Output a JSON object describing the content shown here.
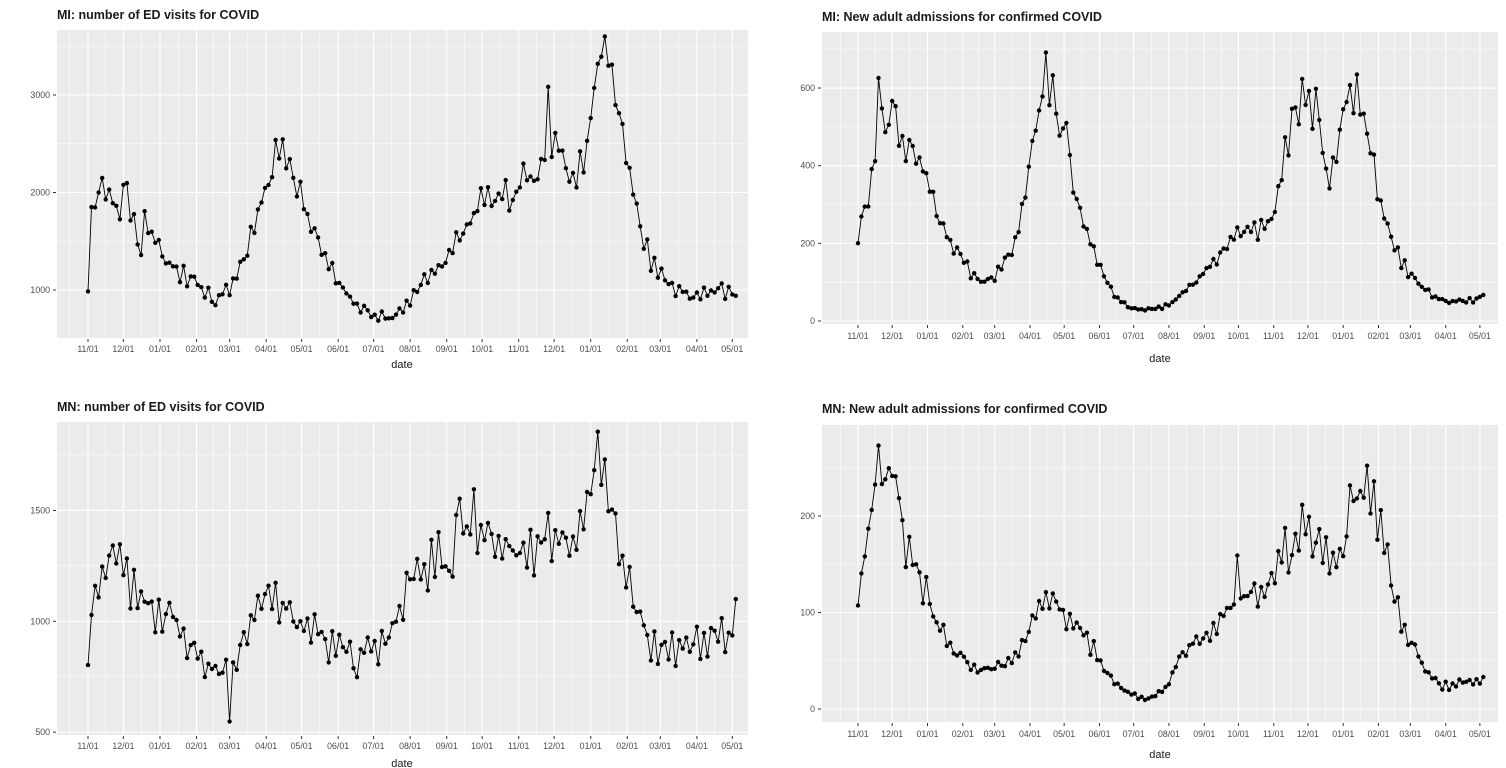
{
  "page": {
    "background": "#ffffff"
  },
  "theme": {
    "panel_bg": "#ebebeb",
    "grid_major_color": "#ffffff",
    "grid_minor_color": "#ffffff",
    "point_color": "#000000",
    "line_color": "#000000",
    "tick_mark_color": "#333333",
    "tick_label_color": "#4d4d4d",
    "title_color": "#1a1a1a"
  },
  "x_axis": {
    "label": "date",
    "tick_labels": [
      "11/01",
      "12/01",
      "01/01",
      "02/01",
      "03/01",
      "04/01",
      "05/01",
      "06/01",
      "07/01",
      "08/01",
      "09/01",
      "10/01",
      "11/01",
      "12/01",
      "01/01",
      "02/01",
      "03/01",
      "04/01",
      "05/01"
    ],
    "tick_day_offsets": [
      0,
      30,
      61,
      92,
      120,
      151,
      181,
      212,
      242,
      273,
      304,
      334,
      365,
      395,
      426,
      457,
      485,
      516,
      546
    ]
  },
  "chart_data": [
    {
      "type": "line",
      "title": "MI: number of ED visits for COVID",
      "xlabel": "date",
      "ylabel": "",
      "y_ticks": [
        1000,
        2000,
        3000
      ],
      "y_minor": [
        1500,
        2500,
        3500
      ],
      "ylim": [
        508,
        3667
      ],
      "x_tick_labels": [
        "11/01",
        "12/01",
        "01/01",
        "02/01",
        "03/01",
        "04/01",
        "05/01",
        "06/01",
        "07/01",
        "08/01",
        "09/01",
        "10/01",
        "11/01",
        "12/01",
        "01/01",
        "02/01",
        "03/01",
        "04/01",
        "05/01"
      ],
      "sampling": "points every ~3 days, day 0 = first 11/01 tick; trend pairs are [day,value] estimates read from plot",
      "trend": [
        0,
        1050,
        3,
        1750,
        7,
        1850,
        12,
        2150,
        16,
        1900,
        21,
        2050,
        24,
        1900,
        27,
        1650,
        31,
        2170,
        35,
        1850,
        40,
        1650,
        45,
        1300,
        48,
        1760,
        53,
        1550,
        58,
        1500,
        63,
        1400,
        67,
        1260,
        73,
        1230,
        79,
        1160,
        85,
        1110,
        92,
        1150,
        98,
        960,
        105,
        950,
        108,
        820,
        114,
        1000,
        120,
        1010,
        128,
        1210,
        136,
        1460,
        144,
        1760,
        150,
        2010,
        156,
        2260,
        162,
        2450,
        168,
        2410,
        174,
        2210,
        181,
        1960,
        187,
        1710,
        194,
        1510,
        202,
        1310,
        210,
        1110,
        218,
        960,
        226,
        860,
        234,
        790,
        242,
        750,
        250,
        720,
        258,
        710,
        266,
        810,
        274,
        910,
        282,
        1060,
        290,
        1160,
        298,
        1260,
        306,
        1360,
        314,
        1510,
        322,
        1660,
        330,
        1860,
        338,
        1960,
        346,
        1910,
        354,
        1960,
        362,
        1910,
        368,
        2110,
        374,
        2160,
        380,
        2110,
        386,
        2310,
        390,
        2860,
        393,
        2410,
        399,
        2510,
        405,
        2310,
        411,
        2210,
        417,
        2260,
        423,
        2510,
        429,
        3010,
        435,
        3550,
        441,
        3460,
        447,
        3010,
        453,
        2660,
        459,
        2210,
        465,
        1810,
        471,
        1510,
        477,
        1310,
        483,
        1210,
        489,
        1110,
        497,
        1010,
        505,
        1000,
        513,
        920,
        521,
        950,
        529,
        1000,
        537,
        1000,
        545,
        1000,
        549,
        960
      ],
      "noise": {
        "weekly": 0.05,
        "jitter": 0.045,
        "seed": 7,
        "clamp": [
          560,
          3600
        ]
      }
    },
    {
      "type": "line",
      "title": "MI: New adult admissions for confirmed COVID",
      "xlabel": "date",
      "ylabel": "",
      "y_ticks": [
        0,
        200,
        400,
        600
      ],
      "y_minor": [
        100,
        300,
        500,
        700
      ],
      "ylim": [
        -8,
        744
      ],
      "x_tick_labels": [
        "11/01",
        "12/01",
        "01/01",
        "02/01",
        "03/01",
        "04/01",
        "05/01",
        "06/01",
        "07/01",
        "08/01",
        "09/01",
        "10/01",
        "11/01",
        "12/01",
        "01/01",
        "02/01",
        "03/01",
        "04/01",
        "05/01"
      ],
      "sampling": "points every ~3 days, day 0 = first 11/01 tick; trend pairs are [day,value] estimates read from plot",
      "trend": [
        0,
        220,
        3,
        270,
        6,
        300,
        9,
        325,
        12,
        360,
        15,
        420,
        18,
        620,
        22,
        540,
        25,
        480,
        29,
        570,
        33,
        540,
        37,
        480,
        41,
        430,
        45,
        445,
        49,
        460,
        53,
        380,
        57,
        420,
        61,
        360,
        65,
        320,
        70,
        280,
        75,
        250,
        80,
        215,
        85,
        180,
        90,
        165,
        95,
        140,
        101,
        120,
        107,
        105,
        113,
        105,
        120,
        115,
        126,
        135,
        132,
        165,
        138,
        205,
        144,
        280,
        150,
        400,
        156,
        510,
        161,
        570,
        165,
        680,
        168,
        630,
        171,
        600,
        175,
        520,
        179,
        455,
        182,
        540,
        186,
        420,
        190,
        350,
        195,
        290,
        201,
        230,
        207,
        180,
        213,
        140,
        219,
        100,
        225,
        70,
        231,
        50,
        237,
        38,
        243,
        32,
        249,
        29,
        255,
        30,
        261,
        31,
        267,
        36,
        273,
        43,
        279,
        56,
        285,
        70,
        291,
        86,
        297,
        100,
        303,
        126,
        309,
        146,
        315,
        160,
        321,
        182,
        327,
        202,
        333,
        222,
        339,
        236,
        345,
        230,
        351,
        236,
        357,
        256,
        362,
        272,
        366,
        310,
        372,
        385,
        378,
        455,
        381,
        540,
        385,
        510,
        390,
        560,
        394,
        580,
        398,
        545,
        402,
        570,
        406,
        500,
        411,
        390,
        415,
        372,
        419,
        415,
        423,
        485,
        427,
        550,
        431,
        600,
        435,
        575,
        438,
        595,
        442,
        535,
        446,
        480,
        450,
        430,
        454,
        380,
        458,
        320,
        462,
        270,
        466,
        230,
        470,
        200,
        474,
        175,
        478,
        150,
        482,
        130,
        486,
        115,
        490,
        100,
        495,
        88,
        500,
        75,
        505,
        65,
        510,
        58,
        515,
        52,
        520,
        49,
        525,
        52,
        530,
        50,
        535,
        53,
        540,
        55,
        545,
        60,
        549,
        65
      ],
      "noise": {
        "weekly": 0.07,
        "jitter": 0.07,
        "seed": 11,
        "clamp": [
          22,
          700
        ]
      }
    },
    {
      "type": "line",
      "title": "MN: number of ED visits for COVID",
      "xlabel": "date",
      "ylabel": "",
      "y_ticks": [
        500,
        1000,
        1500
      ],
      "y_minor": [
        750,
        1250,
        1750
      ],
      "ylim": [
        487,
        1899
      ],
      "x_tick_labels": [
        "11/01",
        "12/01",
        "01/01",
        "02/01",
        "03/01",
        "04/01",
        "05/01",
        "06/01",
        "07/01",
        "08/01",
        "09/01",
        "10/01",
        "11/01",
        "12/01",
        "01/01",
        "02/01",
        "03/01",
        "04/01",
        "05/01"
      ],
      "sampling": "points every ~3 days, day 0 = first 11/01 tick; trend pairs are [day,value] estimates read from plot",
      "trend": [
        0,
        860,
        3,
        1020,
        6,
        1150,
        10,
        1130,
        14,
        1210,
        18,
        1260,
        21,
        1370,
        24,
        1270,
        28,
        1300,
        32,
        1250,
        36,
        1170,
        40,
        1130,
        45,
        1140,
        50,
        1100,
        55,
        1060,
        60,
        1050,
        65,
        960,
        70,
        1060,
        75,
        970,
        80,
        950,
        85,
        900,
        90,
        870,
        95,
        830,
        100,
        800,
        105,
        790,
        110,
        800,
        117,
        760,
        120,
        560,
        123,
        770,
        128,
        850,
        133,
        920,
        138,
        1010,
        143,
        1100,
        148,
        1080,
        153,
        1110,
        158,
        1150,
        163,
        1060,
        168,
        1090,
        173,
        1050,
        178,
        1010,
        183,
        990,
        188,
        1000,
        193,
        960,
        198,
        930,
        203,
        910,
        208,
        900,
        213,
        900,
        218,
        880,
        223,
        860,
        228,
        700,
        231,
        870,
        236,
        880,
        241,
        900,
        246,
        870,
        251,
        880,
        256,
        940,
        261,
        1020,
        266,
        1090,
        271,
        1170,
        276,
        1220,
        281,
        1230,
        286,
        1150,
        291,
        1280,
        296,
        1330,
        301,
        1280,
        306,
        1230,
        311,
        1300,
        315,
        1600,
        318,
        1380,
        322,
        1420,
        327,
        1570,
        330,
        1400,
        335,
        1440,
        340,
        1350,
        345,
        1310,
        350,
        1310,
        355,
        1380,
        360,
        1300,
        365,
        1300,
        370,
        1310,
        375,
        1330,
        380,
        1310,
        385,
        1320,
        390,
        1380,
        395,
        1310,
        400,
        1360,
        405,
        1390,
        410,
        1310,
        415,
        1350,
        420,
        1440,
        425,
        1610,
        432,
        1840,
        435,
        1740,
        439,
        1620,
        443,
        1560,
        447,
        1460,
        451,
        1320,
        455,
        1210,
        459,
        1150,
        463,
        1080,
        467,
        1010,
        471,
        970,
        475,
        930,
        479,
        900,
        483,
        880,
        488,
        890,
        493,
        860,
        498,
        880,
        503,
        880,
        508,
        890,
        513,
        910,
        518,
        900,
        523,
        920,
        528,
        930,
        533,
        930,
        538,
        950,
        543,
        940,
        549,
        1030
      ],
      "noise": {
        "weekly": 0.055,
        "jitter": 0.05,
        "seed": 23,
        "clamp": [
          548,
          1855
        ]
      }
    },
    {
      "type": "line",
      "title": "MN: New adult admissions for confirmed COVID",
      "xlabel": "date",
      "ylabel": "",
      "y_ticks": [
        0,
        100,
        200
      ],
      "y_minor": [
        50,
        150,
        250
      ],
      "ylim": [
        -14,
        294
      ],
      "x_tick_labels": [
        "11/01",
        "12/01",
        "01/01",
        "02/01",
        "03/01",
        "04/01",
        "05/01",
        "06/01",
        "07/01",
        "08/01",
        "09/01",
        "10/01",
        "11/01",
        "12/01",
        "01/01",
        "02/01",
        "03/01",
        "04/01",
        "05/01"
      ],
      "sampling": "points every ~3 days, day 0 = first 11/01 tick; trend pairs are [day,value] estimates read from plot",
      "trend": [
        0,
        120,
        2,
        135,
        5,
        170,
        8,
        175,
        11,
        200,
        14,
        230,
        17,
        255,
        21,
        272,
        24,
        240,
        27,
        255,
        30,
        235,
        33,
        210,
        36,
        220,
        39,
        185,
        42,
        170,
        45,
        160,
        48,
        150,
        51,
        148,
        54,
        130,
        57,
        128,
        60,
        118,
        63,
        106,
        67,
        96,
        71,
        84,
        75,
        76,
        79,
        68,
        83,
        62,
        87,
        56,
        91,
        58,
        95,
        48,
        99,
        47,
        103,
        43,
        107,
        42,
        111,
        41,
        115,
        42,
        119,
        41,
        123,
        44,
        127,
        44,
        131,
        49,
        135,
        53,
        139,
        57,
        143,
        63,
        147,
        75,
        151,
        86,
        155,
        97,
        159,
        102,
        163,
        113,
        167,
        117,
        171,
        107,
        175,
        112,
        179,
        103,
        183,
        96,
        187,
        98,
        191,
        88,
        195,
        81,
        199,
        73,
        203,
        66,
        207,
        61,
        211,
        49,
        215,
        43,
        219,
        36,
        223,
        30,
        227,
        26,
        231,
        22,
        235,
        19,
        239,
        16,
        243,
        14,
        247,
        11,
        251,
        11,
        255,
        10,
        259,
        13,
        263,
        15,
        267,
        19,
        271,
        24,
        275,
        33,
        279,
        45,
        283,
        54,
        287,
        58,
        291,
        63,
        295,
        69,
        299,
        72,
        303,
        72,
        307,
        78,
        311,
        80,
        315,
        82,
        319,
        90,
        323,
        100,
        327,
        102,
        330,
        113,
        333,
        144,
        336,
        122,
        340,
        115,
        344,
        124,
        348,
        128,
        352,
        124,
        356,
        130,
        360,
        137,
        364,
        133,
        368,
        148,
        372,
        158,
        375,
        178,
        379,
        155,
        383,
        176,
        387,
        177,
        391,
        193,
        394,
        204,
        397,
        192,
        400,
        178,
        403,
        183,
        406,
        165,
        409,
        172,
        412,
        152,
        415,
        163,
        418,
        153,
        421,
        155,
        424,
        158,
        427,
        165,
        430,
        190,
        435,
        248,
        438,
        205,
        441,
        228,
        444,
        218,
        447,
        232,
        450,
        222,
        453,
        228,
        456,
        198,
        459,
        188,
        462,
        170,
        465,
        152,
        468,
        136,
        471,
        121,
        474,
        107,
        477,
        96,
        480,
        86,
        483,
        77,
        486,
        71,
        489,
        62,
        492,
        55,
        495,
        47,
        498,
        42,
        501,
        36,
        504,
        31,
        507,
        29,
        510,
        26,
        513,
        23,
        517,
        25,
        520,
        23,
        523,
        28,
        526,
        25,
        529,
        29,
        532,
        26,
        535,
        29,
        538,
        26,
        541,
        31,
        544,
        28,
        547,
        29,
        549,
        30
      ],
      "noise": {
        "weekly": 0.08,
        "jitter": 0.09,
        "seed": 31,
        "clamp": [
          7,
          273
        ]
      }
    }
  ]
}
